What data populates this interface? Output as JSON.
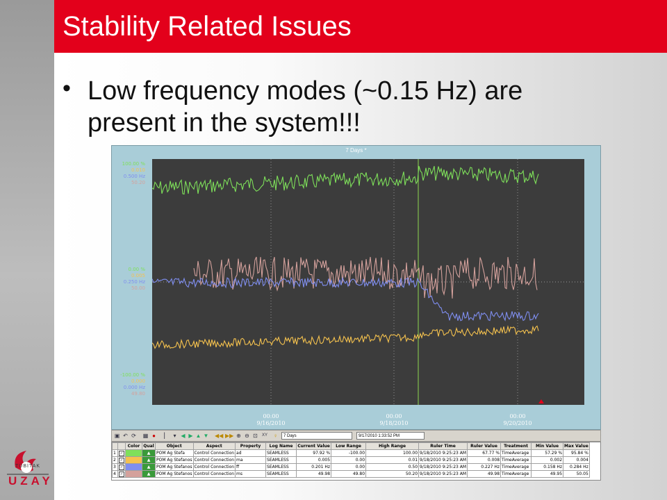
{
  "slide": {
    "title": "Stability Related Issues",
    "bullet": "Low frequency modes (~0.15 Hz) are present in the system!!!",
    "bullet_marker": "•",
    "logo": {
      "text": "UZAY",
      "small_text": "TÜBİTAK",
      "icon": "tubitak-flame-logo"
    },
    "colors": {
      "title_bar": "#e3001b",
      "logo": "#c8102e"
    }
  },
  "trend_window": {
    "caption": "7 Days *",
    "y_axis_top": [
      "100.00 %",
      "0.010",
      "0.500 Hz",
      "50.20"
    ],
    "y_axis_mid": [
      "0.00 %",
      "0.005",
      "0.250 Hz",
      "50.00"
    ],
    "y_axis_bottom": [
      "-100.00 %",
      "0.000",
      "0.000 Hz",
      "49.80"
    ],
    "x_ticks": [
      {
        "time": "00:00",
        "date": "9/16/2010"
      },
      {
        "time": "00:00",
        "date": "9/18/2010"
      },
      {
        "time": "00:00",
        "date": "9/20/2010"
      }
    ],
    "colors": {
      "background": "#3c3c3c",
      "frame": "#a9cdd8",
      "ad": "#7ee05a",
      "ma": "#f5c24e",
      "ff": "#7f8ef0",
      "ms": "#d4a19c",
      "ruler": "#8ed64f"
    }
  },
  "toolbar": {
    "range_value": "7 Days",
    "time_value": "9/17/2010 1:33:52 PM",
    "xy_label": "XY"
  },
  "table": {
    "headers": [
      "Color",
      "Qual",
      "Object",
      "Aspect",
      "Property",
      "Log Name",
      "Current Value",
      "Low Range",
      "High Range",
      "Ruler Time",
      "Ruler Value",
      "Treatment",
      "Min Value",
      "Max Value"
    ],
    "rows": [
      {
        "num": "1",
        "color": "#7ee05a",
        "object": "POM Ag Stefa",
        "aspect": "Control Connection",
        "property": "ad",
        "log": "SEAMLESS",
        "current": "97.92 %",
        "low": "-100.00",
        "high": "100.00",
        "ruler_time": "9/18/2010 9:25:23 AM",
        "ruler_value": "67.77 %",
        "treatment": "TimeAverage",
        "min": "57.29 %",
        "max": "95.84 %"
      },
      {
        "num": "2",
        "color": "#f5c24e",
        "object": "POM Ag Stefanos",
        "aspect": "Control Connection",
        "property": "ma",
        "log": "SEAMLESS",
        "current": "0.005",
        "low": "0.00",
        "high": "0.01",
        "ruler_time": "9/18/2010 9:25:23 AM",
        "ruler_value": "0.008",
        "treatment": "TimeAverage",
        "min": "0.002",
        "max": "0.004"
      },
      {
        "num": "3",
        "color": "#7f8ef0",
        "object": "POM Ag Stefanos",
        "aspect": "Control Connection",
        "property": "ff",
        "log": "SEAMLESS",
        "current": "0.201 Hz",
        "low": "0.00",
        "high": "0.50",
        "ruler_time": "9/18/2010 9:25:23 AM",
        "ruler_value": "0.227 Hz",
        "treatment": "TimeAverage",
        "min": "0.158 Hz",
        "max": "0.284 Hz"
      },
      {
        "num": "4",
        "color": "#d4a19c",
        "object": "POM Ag Stefanos",
        "aspect": "Control Connection",
        "property": "ms",
        "log": "SEAMLESS",
        "current": "49.98",
        "low": "49.80",
        "high": "50.20",
        "ruler_time": "9/18/2010 9:25:23 AM",
        "ruler_value": "49.98",
        "treatment": "TimeAverage",
        "min": "49.95",
        "max": "50.05"
      }
    ]
  }
}
